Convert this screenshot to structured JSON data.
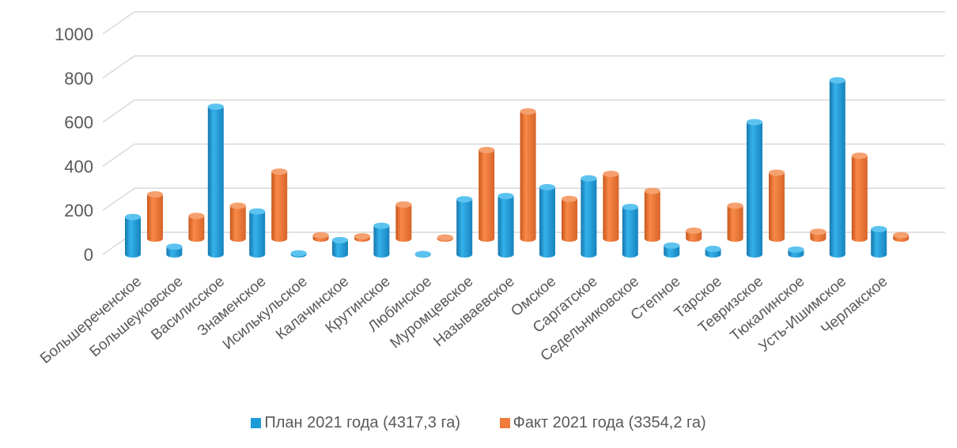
{
  "chart_data": {
    "type": "bar",
    "title": "",
    "xlabel": "",
    "ylabel": "",
    "ylim": [
      0,
      1000
    ],
    "yticks": [
      0,
      200,
      400,
      600,
      800,
      1000
    ],
    "grid": true,
    "legend_position": "bottom",
    "categories": [
      "Большереченское",
      "Большеуковское",
      "Василисское",
      "Знаменское",
      "Исилькульское",
      "Калачинское",
      "Крутинское",
      "Любинское",
      "Муромцевское",
      "Называевское",
      "Омское",
      "Саргатское",
      "Седельниковское",
      "Степное",
      "Тарское",
      "Тевризское",
      "Тюкалинское",
      "Усть-Ишимское",
      "Черлакское"
    ],
    "series": [
      {
        "name": "План 2021 года (4317,3 га)",
        "color": "#1e9bd7",
        "values": [
          170,
          35,
          670,
          195,
          5,
          65,
          130,
          2,
          250,
          265,
          305,
          345,
          215,
          40,
          25,
          600,
          22,
          790,
          115
        ]
      },
      {
        "name": "Факт 2021 года (3354,2 га)",
        "color": "#f07a3a",
        "values": [
          195,
          100,
          145,
          295,
          15,
          10,
          150,
          5,
          390,
          560,
          175,
          285,
          210,
          35,
          145,
          290,
          30,
          365,
          15
        ]
      }
    ]
  }
}
